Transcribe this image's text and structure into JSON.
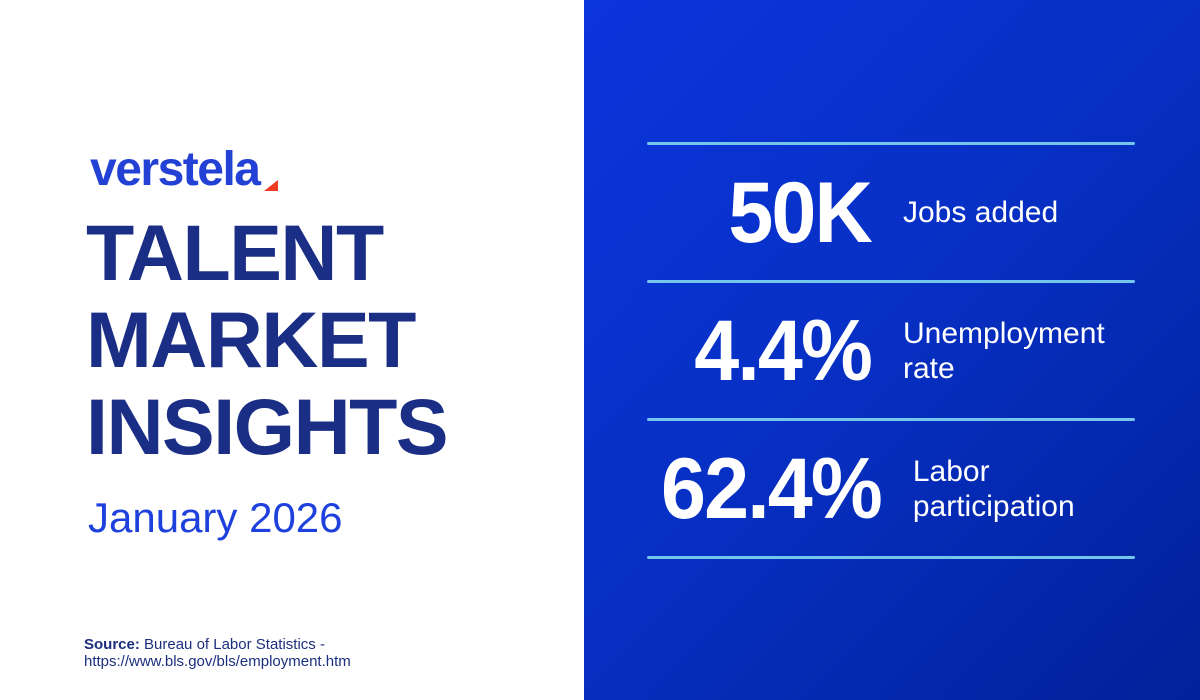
{
  "brand": {
    "logo_text": "verstela",
    "logo_mark_icon": "red-corner-triangle-icon",
    "logo_color": "#2342d5",
    "accent_red": "#ef3b23"
  },
  "header": {
    "title": "TALENT\nMARKET\nINSIGHTS",
    "subtitle": "January 2026",
    "title_color": "#1b2e85",
    "subtitle_color": "#1e41de"
  },
  "source": {
    "label": "Source:",
    "text": " Bureau of Labor Statistics - https://www.bls.gov/bls/employment.htm"
  },
  "stats_panel": {
    "background_gradient": [
      "#0b35dc",
      "#01219a"
    ],
    "divider_color": "#74c6ec",
    "text_color": "#ffffff"
  },
  "stats": [
    {
      "value": "50K",
      "label": "Jobs added"
    },
    {
      "value": "4.4%",
      "label": "Unemployment rate"
    },
    {
      "value": "62.4%",
      "label": "Labor participation"
    }
  ]
}
